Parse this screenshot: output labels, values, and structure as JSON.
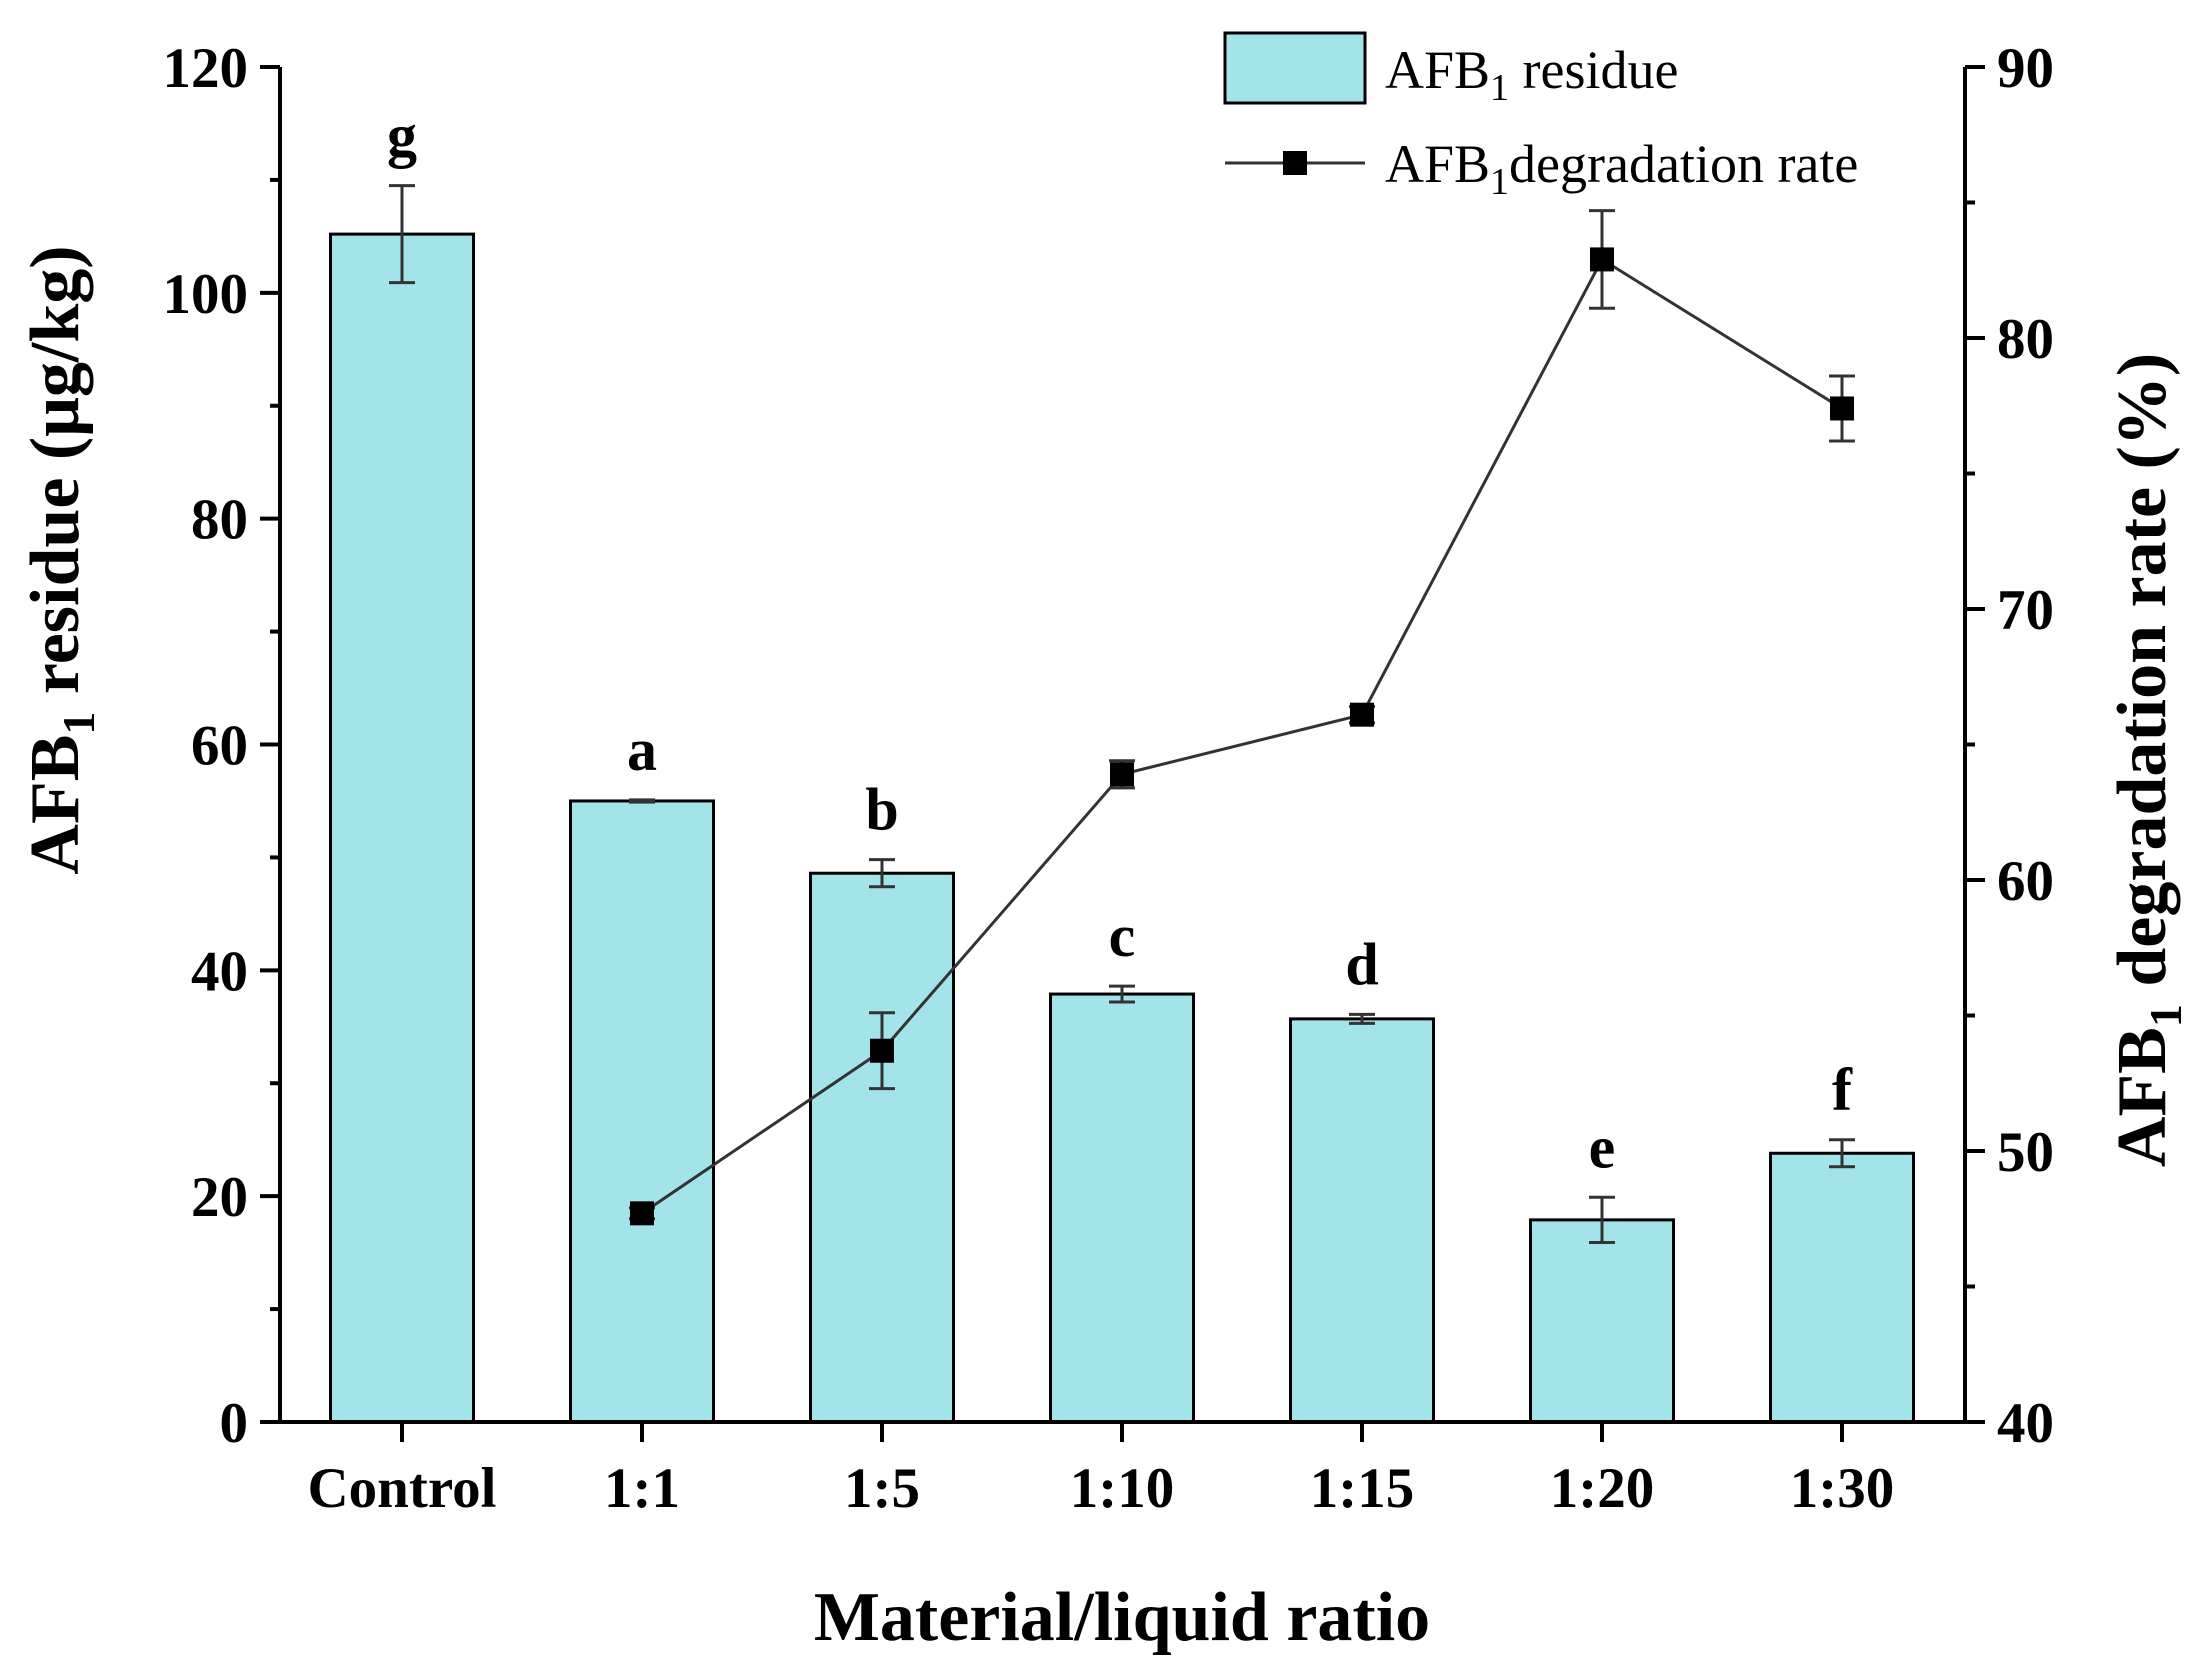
{
  "chart_data": {
    "type": "bar",
    "categories": [
      "Control",
      "1:1",
      "1:5",
      "1:10",
      "1:15",
      "1:20",
      "1:30"
    ],
    "xlabel": "Material/liquid ratio",
    "ylabel": {
      "prefix": "AFB",
      "sub": "1",
      "suffix": " residue (μg/kg)"
    },
    "y2label": {
      "prefix": "AFB",
      "sub": "1",
      "suffix": " degradation rate (%)"
    },
    "ylim": [
      0,
      120
    ],
    "yticks": [
      0,
      20,
      40,
      60,
      80,
      100,
      120
    ],
    "y2lim": [
      40,
      90
    ],
    "y2ticks": [
      40,
      50,
      60,
      70,
      80,
      90
    ],
    "series": [
      {
        "name": "AFB1 residue",
        "legend": {
          "prefix": "AFB",
          "sub": "1",
          "suffix": " residue"
        },
        "type": "bar",
        "axis": "left",
        "color": "#a3e4eb",
        "values": [
          105.2,
          55.0,
          48.6,
          37.9,
          35.7,
          17.9,
          23.8
        ],
        "errors": [
          4.3,
          0.1,
          1.2,
          0.7,
          0.4,
          2.0,
          1.2
        ],
        "labels": [
          "g",
          "a",
          "b",
          "c",
          "d",
          "e",
          "f"
        ]
      },
      {
        "name": "AFB1degradation rate",
        "legend": {
          "prefix": "AFB",
          "sub": "1",
          "suffix": "degradation rate"
        },
        "type": "line",
        "axis": "right",
        "color": "#000000",
        "x": [
          "1:1",
          "1:5",
          "1:10",
          "1:15",
          "1:20",
          "1:30"
        ],
        "values": [
          47.7,
          53.7,
          63.9,
          66.1,
          82.9,
          77.4
        ],
        "errors": [
          0.2,
          1.4,
          0.5,
          0.3,
          1.8,
          1.2
        ]
      }
    ]
  }
}
